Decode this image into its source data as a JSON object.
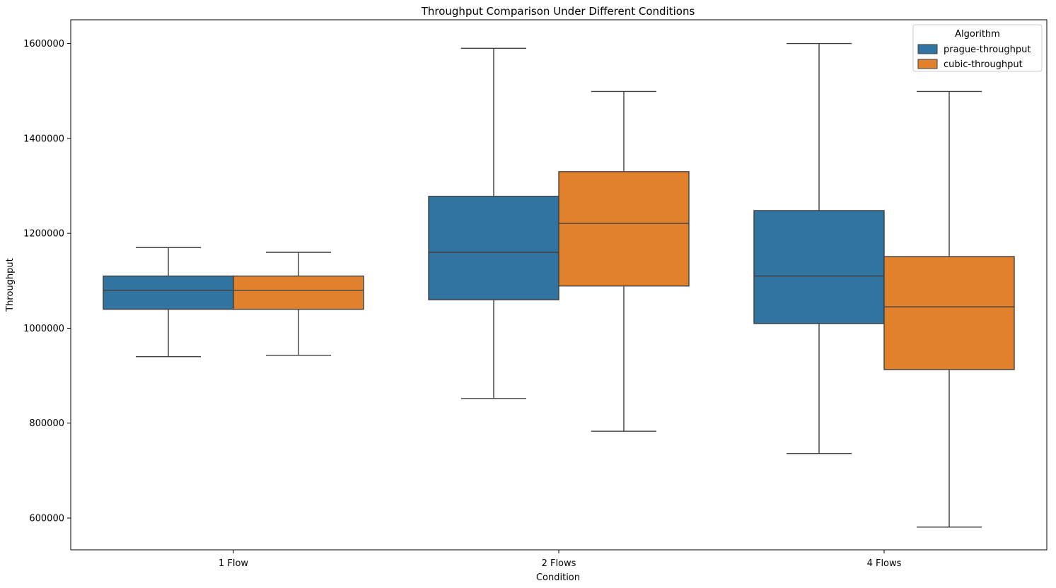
{
  "chart_data": {
    "type": "boxplot",
    "title": "Throughput Comparison Under Different Conditions",
    "xlabel": "Condition",
    "ylabel": "Throughput",
    "categories": [
      "1 Flow",
      "2 Flows",
      "4 Flows"
    ],
    "ylim": [
      533000,
      1650000
    ],
    "yticks": [
      600000,
      800000,
      1000000,
      1200000,
      1400000,
      1600000
    ],
    "ytick_labels": [
      "600000",
      "800000",
      "1000000",
      "1200000",
      "1400000",
      "1600000"
    ],
    "grid": false,
    "legend": {
      "title": "Algorithm",
      "placement": "top-right"
    },
    "series": [
      {
        "name": "prague-throughput",
        "color": "#3274a1",
        "boxes": [
          {
            "whisker_low": 940000,
            "q1": 1040000,
            "median": 1080000,
            "q3": 1110000,
            "whisker_high": 1170000
          },
          {
            "whisker_low": 852000,
            "q1": 1060000,
            "median": 1160000,
            "q3": 1278000,
            "whisker_high": 1590000
          },
          {
            "whisker_low": 736000,
            "q1": 1010000,
            "median": 1110000,
            "q3": 1248000,
            "whisker_high": 1600000
          }
        ]
      },
      {
        "name": "cubic-throughput",
        "color": "#e1812c",
        "boxes": [
          {
            "whisker_low": 943000,
            "q1": 1040000,
            "median": 1080000,
            "q3": 1110000,
            "whisker_high": 1160000
          },
          {
            "whisker_low": 783000,
            "q1": 1089000,
            "median": 1221000,
            "q3": 1330000,
            "whisker_high": 1499000
          },
          {
            "whisker_low": 581000,
            "q1": 913000,
            "median": 1045000,
            "q3": 1151000,
            "whisker_high": 1499000
          }
        ]
      }
    ]
  }
}
